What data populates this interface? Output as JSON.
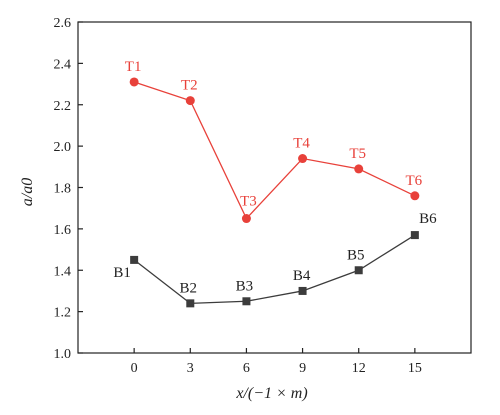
{
  "chart_data": {
    "type": "line",
    "title": "",
    "xlabel": "x/(−1 × m)",
    "ylabel": "a/a0",
    "x": [
      0,
      3,
      6,
      9,
      12,
      15
    ],
    "xlim": [
      -3,
      18
    ],
    "ylim": [
      1.0,
      2.6
    ],
    "x_ticks": [
      "0",
      "3",
      "6",
      "9",
      "12",
      "15"
    ],
    "y_ticks": [
      "1.0",
      "1.2",
      "1.4",
      "1.6",
      "1.8",
      "2.0",
      "2.2",
      "2.4",
      "2.6"
    ],
    "grid": false,
    "series": [
      {
        "marker": "circle",
        "color": "#e8413a",
        "values": [
          2.31,
          2.22,
          1.65,
          1.94,
          1.89,
          1.76
        ],
        "point_labels": [
          "T1",
          "T2",
          "T3",
          "T4",
          "T5",
          "T6"
        ]
      },
      {
        "marker": "square",
        "color": "#3c3c3c",
        "values": [
          1.45,
          1.24,
          1.25,
          1.3,
          1.4,
          1.57
        ],
        "point_labels": [
          "B1",
          "B2",
          "B3",
          "B4",
          "B5",
          "B6"
        ]
      }
    ]
  }
}
